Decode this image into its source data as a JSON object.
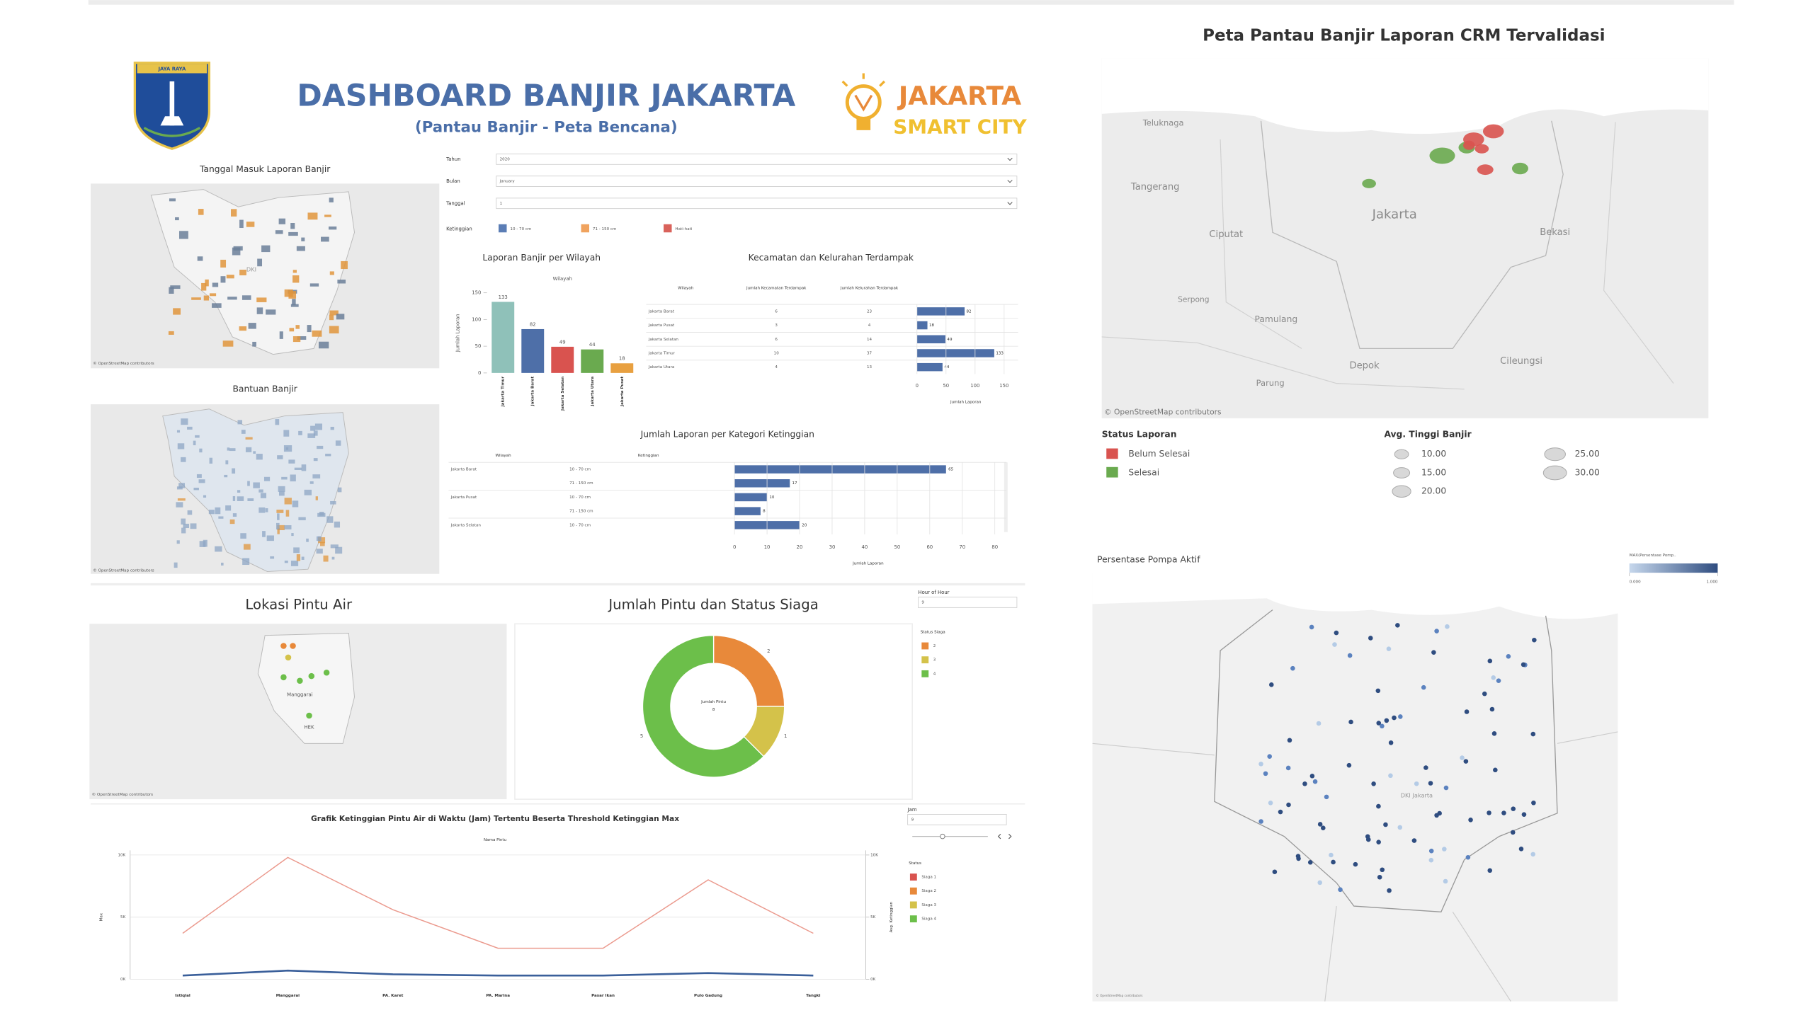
{
  "header": {
    "title": "DASHBOARD BANJIR JAKARTA",
    "subtitle": "(Pantau Banjir - Peta Bencana)",
    "logo_text": "JAYA RAYA",
    "brand": [
      "JAKARTA",
      "SMART CITY"
    ]
  },
  "filters": {
    "items": [
      {
        "label": "Tahun",
        "value": "2020"
      },
      {
        "label": "Bulan",
        "value": "January"
      },
      {
        "label": "Tanggal",
        "value": "1"
      }
    ],
    "ketinggian": {
      "label": "Ketinggian",
      "items": [
        {
          "name": "10 - 70 cm",
          "color": "#5b7db5"
        },
        {
          "name": "71 - 150 cm",
          "color": "#f0a35e"
        },
        {
          "name": "Hati-hati",
          "color": "#d9625b"
        }
      ]
    },
    "hour": {
      "label": "Hour of Hour",
      "value": "9"
    },
    "jam": {
      "label": "Jam",
      "value": "9"
    }
  },
  "maps": {
    "laporan": {
      "title": "Tanggal Masuk Laporan Banjir",
      "label": "DKI",
      "credit": "© OpenStreetMap contributors"
    },
    "bantuan": {
      "title": "Bantuan Banjir"
    },
    "pintu_air": {
      "title": "Lokasi Pintu Air",
      "labels": [
        "Manggarai",
        "HEK"
      ]
    },
    "crm": {
      "title": "Peta Pantau Banjir Laporan CRM Tervalidasi",
      "places": [
        "Teluknaga",
        "Tangerang",
        "Jakarta",
        "Ciputat",
        "Bekasi",
        "Serpong",
        "Pamulang",
        "Depok",
        "Cileungsi",
        "Parung"
      ],
      "status_legend": {
        "title": "Status Laporan",
        "items": [
          {
            "name": "Belum Selesai",
            "color": "#d9534f"
          },
          {
            "name": "Selesai",
            "color": "#6aaa4f"
          }
        ]
      },
      "size_legend": {
        "title": "Avg. Tinggi Banjir",
        "values": [
          10,
          15,
          20,
          25,
          30
        ],
        "value_labels": [
          "10.00",
          "15.00",
          "20.00",
          "25.00",
          "30.00"
        ]
      }
    },
    "pompa": {
      "title": "Persentase Pompa Aktif",
      "label": "DKI Jakarta",
      "color_legend": {
        "title": "MAX(Persentase Pomp..",
        "ticks": [
          {
            "value": 0,
            "label": "0.000"
          },
          {
            "value": 1,
            "label": "1.000"
          }
        ]
      }
    }
  },
  "chart_data": [
    {
      "type": "bar",
      "title": "Laporan Banjir per Wilayah",
      "x_label": "Wilayah",
      "y_label": "Jumlah Laporan",
      "categories": [
        "Jakarta Timur",
        "Jakarta Barat",
        "Jakarta Selatan",
        "Jakarta Utara",
        "Jakarta Pusat"
      ],
      "values": [
        133,
        82,
        49,
        44,
        18
      ],
      "colors": [
        "#8fc1b9",
        "#4e6fa8",
        "#d9534f",
        "#6aaa4f",
        "#e8a040"
      ],
      "ylim": [
        0,
        150
      ],
      "yticks": [
        0,
        50,
        100,
        150
      ]
    },
    {
      "type": "table_bar",
      "title": "Kecamatan dan Kelurahan Terdampak",
      "columns": [
        "Wilayah",
        "Jumlah Kecamatan Terdampak",
        "Jumlah Kelurahan Terdampak"
      ],
      "categories": [
        "Jakarta Barat",
        "Jakarta Pusat",
        "Jakarta Selatan",
        "Jakarta Timur",
        "Jakarta Utara"
      ],
      "kecamatan": [
        6,
        3,
        6,
        10,
        4
      ],
      "kelurahan": [
        23,
        4,
        14,
        37,
        13
      ],
      "values": [
        82,
        18,
        49,
        133,
        44
      ],
      "color": "#4e6fa8",
      "x_label": "Jumlah Laporan",
      "xlim": [
        0,
        150
      ],
      "xticks": [
        0,
        50,
        100,
        150
      ]
    },
    {
      "type": "hbar_table",
      "title": "Jumlah Laporan per Kategori Ketinggian",
      "columns": [
        "Wilayah",
        "Ketinggian"
      ],
      "wilayah": [
        "Jakarta Barat",
        null,
        "Jakarta Pusat",
        null,
        "Jakarta Selatan"
      ],
      "categories": [
        "10 - 70 cm",
        "71 - 150 cm",
        "10 - 70 cm",
        "71 - 150 cm",
        "10 - 70 cm"
      ],
      "values": [
        65,
        17,
        10,
        8,
        20
      ],
      "color": "#4e6fa8",
      "x_label": "Jumlah Laporan",
      "xlim": [
        0,
        80
      ],
      "xticks": [
        0,
        10,
        20,
        30,
        40,
        50,
        60,
        70,
        80
      ]
    },
    {
      "type": "donut",
      "title": "Jumlah Pintu dan Status Siaga",
      "center_label": "Jumlah Pintu",
      "center_value": 8,
      "legend_title": "Status Siaga",
      "categories": [
        "2",
        "3",
        "4"
      ],
      "values": [
        2,
        1,
        5
      ],
      "colors": [
        "#e8893a",
        "#d4c24a",
        "#6cbf4a"
      ]
    },
    {
      "type": "line",
      "title": "Grafik Ketinggian Pintu Air di Waktu (Jam) Tertentu Beserta Threshold Ketinggian Max",
      "x_label": "Nama Pintu",
      "categories": [
        "Istiqlal",
        "Manggarai",
        "PA. Karet",
        "PA. Marina",
        "Pasar Ikan",
        "Pulo Gadung",
        "Tangki"
      ],
      "series": [
        {
          "name": "Max",
          "color": "#eb9a8e",
          "values": [
            3700,
            9800,
            5600,
            2500,
            2500,
            8000,
            3700
          ]
        },
        {
          "name": "Avg. Ketinggian",
          "color": "#3a5f9a",
          "axis": "y2",
          "values": [
            300,
            700,
            400,
            300,
            300,
            500,
            300
          ]
        }
      ],
      "ylim": [
        0,
        10000
      ],
      "yticks": [
        {
          "value": 0,
          "label": "0K"
        },
        {
          "value": 5000,
          "label": "5K"
        },
        {
          "value": 10000,
          "label": "10K"
        }
      ],
      "y2lim": [
        0,
        10000
      ],
      "y2ticks": [
        {
          "value": 0,
          "label": "0K"
        },
        {
          "value": 5000,
          "label": "5K"
        },
        {
          "value": 10000,
          "label": "10K"
        }
      ],
      "legend_title": "Status",
      "legend": [
        {
          "name": "Siaga 1",
          "color": "#d9534f"
        },
        {
          "name": "Siaga 2",
          "color": "#e8893a"
        },
        {
          "name": "Siaga 3",
          "color": "#d4c24a"
        },
        {
          "name": "Siaga 4",
          "color": "#6cbf4a"
        }
      ]
    }
  ]
}
